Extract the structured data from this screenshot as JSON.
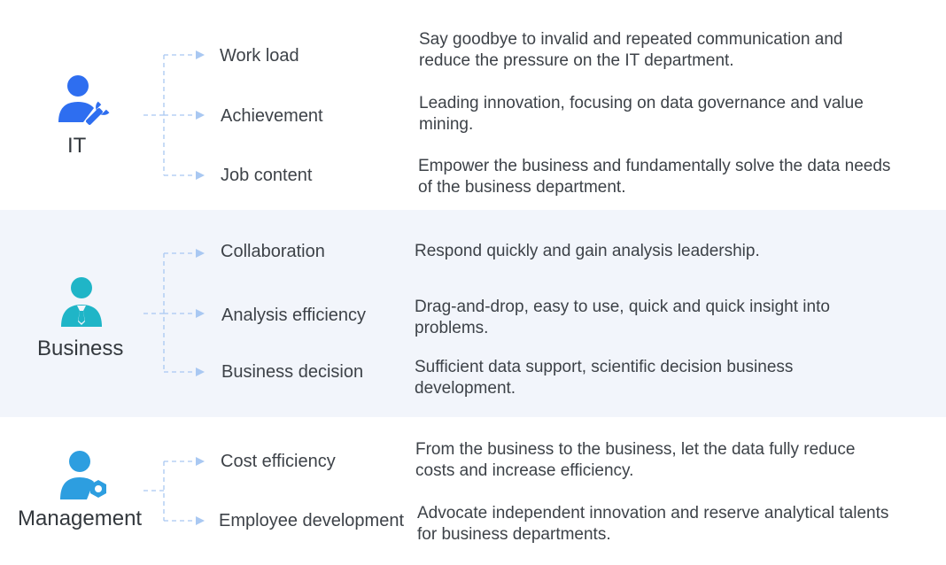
{
  "colors": {
    "it_icon": "#2e6ef0",
    "business_icon": "#1fb5c7",
    "management_icon": "#2d9ee0",
    "connector": "#a9c8f2",
    "shaded_background": "#f2f5fb"
  },
  "sections": [
    {
      "role": "IT",
      "icon": "person-wrench-icon",
      "items": [
        {
          "label": "Work load",
          "description": "Say goodbye to invalid and repeated communication and reduce the pressure on the IT department."
        },
        {
          "label": "Achievement",
          "description": "Leading innovation, focusing on data governance and value mining."
        },
        {
          "label": "Job content",
          "description": "Empower the business and fundamentally solve the data needs of the business department."
        }
      ]
    },
    {
      "role": "Business",
      "icon": "person-tie-icon",
      "items": [
        {
          "label": "Collaboration",
          "description": "Respond quickly and gain analysis leadership."
        },
        {
          "label": "Analysis efficiency",
          "description": "Drag-and-drop, easy to use, quick and quick insight into problems."
        },
        {
          "label": "Business decision",
          "description": "Sufficient data support, scientific decision business development."
        }
      ]
    },
    {
      "role": "Management",
      "icon": "person-gear-icon",
      "items": [
        {
          "label": "Cost efficiency",
          "description": "From the business to the business, let the data fully reduce costs and increase efficiency."
        },
        {
          "label": "Employee development",
          "description": "Advocate independent innovation and reserve analytical talents for business departments."
        }
      ]
    }
  ]
}
